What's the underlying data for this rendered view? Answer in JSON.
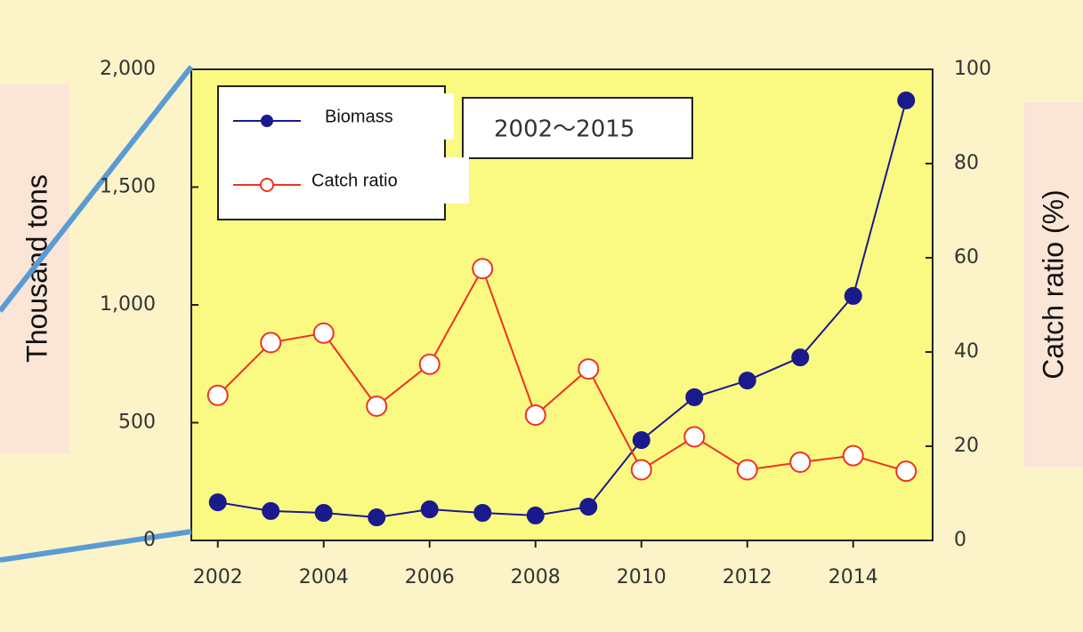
{
  "chart_data": {
    "type": "line",
    "annotation": "2002～2015",
    "ylabel": "Thousand tons",
    "y2label": "Catch ratio (%)",
    "x": [
      2002,
      2003,
      2004,
      2005,
      2006,
      2007,
      2008,
      2009,
      2010,
      2011,
      2012,
      2013,
      2014,
      2015
    ],
    "series": [
      {
        "name": "Biomass",
        "color": "#1a1a8c",
        "marker": "filled",
        "axis": "y",
        "values": [
          162,
          125,
          117,
          98,
          132,
          117,
          106,
          143,
          426,
          608,
          679,
          777,
          1038,
          1868
        ]
      },
      {
        "name": "Catch ratio",
        "color": "#ee3322",
        "marker": "open",
        "axis": "y2",
        "values": [
          30.8,
          42,
          44,
          28.5,
          37.4,
          57.7,
          26.6,
          36.4,
          15,
          22,
          15,
          16.6,
          18,
          14.7
        ]
      }
    ],
    "xlim": [
      2001.5,
      2015.5
    ],
    "xticks": [
      2002,
      2004,
      2006,
      2008,
      2010,
      2012,
      2014
    ],
    "ylim": [
      0,
      2000
    ],
    "yticks": [
      0,
      500,
      {
        "value": 1000,
        "label": "1,000"
      },
      {
        "value": 1500,
        "label": "1,500"
      },
      {
        "value": 2000,
        "label": "2,000"
      }
    ],
    "y2lim": [
      0,
      100
    ],
    "y2ticks": [
      0,
      20,
      40,
      60,
      80,
      100
    ]
  }
}
